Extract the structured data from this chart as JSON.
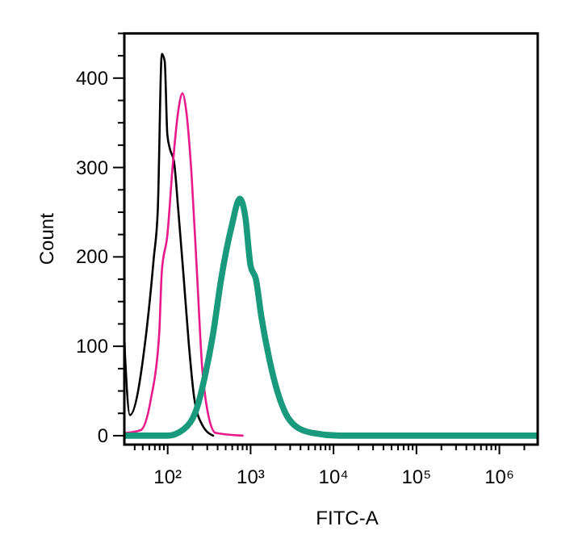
{
  "chart_data": {
    "type": "line",
    "xlabel": "FITC-A",
    "ylabel": "Count",
    "log": "x",
    "grid": false,
    "marker": "none",
    "line_style": "solid",
    "xlim": [
      30,
      2900000
    ],
    "ylim": [
      -10,
      450
    ],
    "xticks": [
      {
        "value": 40,
        "label": null
      },
      {
        "value": 50,
        "label": null
      },
      {
        "value": 60,
        "label": null
      },
      {
        "value": 70,
        "label": null
      },
      {
        "value": 80,
        "label": null
      },
      {
        "value": 90,
        "label": null
      },
      {
        "value": 100,
        "label": "10²"
      },
      {
        "value": 200,
        "label": null
      },
      {
        "value": 300,
        "label": null
      },
      {
        "value": 400,
        "label": null
      },
      {
        "value": 500,
        "label": null
      },
      {
        "value": 600,
        "label": null
      },
      {
        "value": 700,
        "label": null
      },
      {
        "value": 800,
        "label": null
      },
      {
        "value": 900,
        "label": null
      },
      {
        "value": 1000,
        "label": "10³"
      },
      {
        "value": 2000,
        "label": null
      },
      {
        "value": 3000,
        "label": null
      },
      {
        "value": 4000,
        "label": null
      },
      {
        "value": 5000,
        "label": null
      },
      {
        "value": 6000,
        "label": null
      },
      {
        "value": 7000,
        "label": null
      },
      {
        "value": 8000,
        "label": null
      },
      {
        "value": 9000,
        "label": null
      },
      {
        "value": 10000,
        "label": "10⁴"
      },
      {
        "value": 20000,
        "label": null
      },
      {
        "value": 30000,
        "label": null
      },
      {
        "value": 40000,
        "label": null
      },
      {
        "value": 50000,
        "label": null
      },
      {
        "value": 60000,
        "label": null
      },
      {
        "value": 70000,
        "label": null
      },
      {
        "value": 80000,
        "label": null
      },
      {
        "value": 90000,
        "label": null
      },
      {
        "value": 100000,
        "label": "10⁵"
      },
      {
        "value": 200000,
        "label": null
      },
      {
        "value": 300000,
        "label": null
      },
      {
        "value": 400000,
        "label": null
      },
      {
        "value": 500000,
        "label": null
      },
      {
        "value": 600000,
        "label": null
      },
      {
        "value": 700000,
        "label": null
      },
      {
        "value": 800000,
        "label": null
      },
      {
        "value": 900000,
        "label": null
      },
      {
        "value": 1000000,
        "label": "10⁶"
      },
      {
        "value": 2000000,
        "label": null
      }
    ],
    "yticks": [
      0,
      {
        "value": 25,
        "label": null
      },
      {
        "value": 50,
        "label": null
      },
      {
        "value": 75,
        "label": null
      },
      100,
      {
        "value": 125,
        "label": null
      },
      {
        "value": 150,
        "label": null
      },
      {
        "value": 175,
        "label": null
      },
      200,
      {
        "value": 225,
        "label": null
      },
      {
        "value": 250,
        "label": null
      },
      {
        "value": 275,
        "label": null
      },
      300,
      {
        "value": 325,
        "label": null
      },
      {
        "value": 350,
        "label": null
      },
      {
        "value": 375,
        "label": null
      },
      400,
      {
        "value": 425,
        "label": null
      },
      {
        "value": 450,
        "label": null
      }
    ],
    "series": [
      {
        "color": "#000000",
        "x": [
          30,
          35,
          55,
          68,
          76,
          85,
          92,
          99,
          107,
          119,
          134,
          155,
          180,
          209,
          261,
          353
        ],
        "values": [
          105,
          23,
          114,
          199,
          253,
          427,
          419,
          337,
          320,
          307,
          253,
          180,
          102,
          42,
          12,
          0
        ]
      },
      {
        "color": "#e8198b",
        "x": [
          30,
          47,
          63,
          79,
          85,
          99,
          115,
          134,
          151,
          167,
          194,
          225,
          261,
          303,
          379,
          800
        ],
        "values": [
          3,
          6,
          42,
          114,
          184,
          224,
          302,
          363,
          383,
          364,
          292,
          184,
          75,
          27,
          3,
          0
        ]
      },
      {
        "color": "#1a9a7c",
        "x": [
          30,
          99,
          155,
          225,
          282,
          353,
          441,
          593,
          741,
          863,
          1000,
          1159,
          1349,
          1688,
          2110,
          2640,
          3550,
          5540,
          11700,
          2900000
        ],
        "values": [
          0,
          0,
          7,
          31,
          67,
          114,
          175,
          235,
          265,
          245,
          190,
          175,
          133,
          85,
          49,
          25,
          10,
          3,
          0,
          0
        ]
      }
    ]
  }
}
